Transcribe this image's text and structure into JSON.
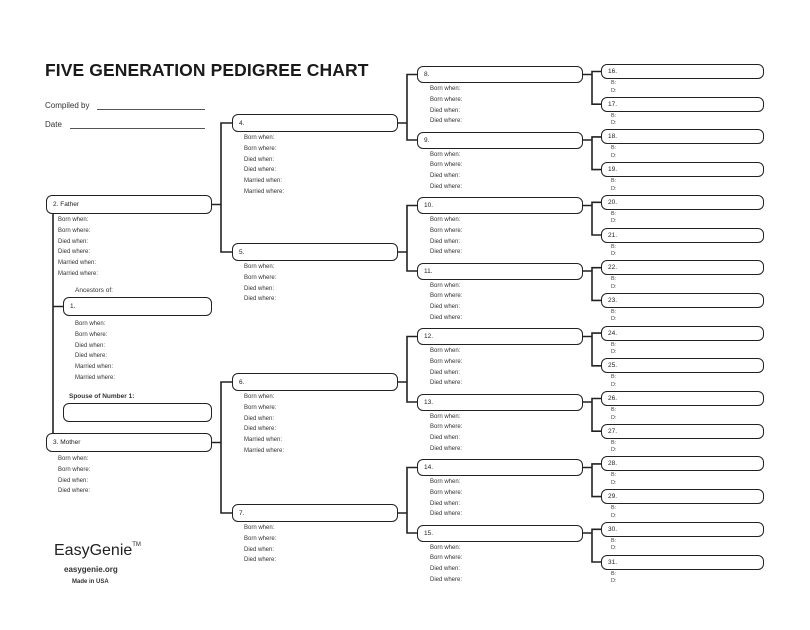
{
  "title": "FIVE GENERATION PEDIGREE CHART",
  "compiled_by_label": "Compiled by",
  "date_label": "Date",
  "ancestors_of_label": "Ancestors of:",
  "spouse_label": "Spouse of Number 1:",
  "fields": {
    "full": [
      "Born when:",
      "Born where:",
      "Died when:",
      "Died where:",
      "Married when:",
      "Married where:"
    ],
    "short": [
      "Born when:",
      "Born where:",
      "Died when:",
      "Died where:"
    ],
    "gen5": [
      "B:",
      "D:"
    ]
  },
  "persons": {
    "1": "1.",
    "2": "2. Father",
    "3": "3. Mother",
    "4": "4.",
    "5": "5.",
    "6": "6.",
    "7": "7.",
    "8": "8.",
    "9": "9.",
    "10": "10.",
    "11": "11.",
    "12": "12.",
    "13": "13.",
    "14": "14.",
    "15": "15.",
    "16": "16.",
    "17": "17.",
    "18": "18.",
    "19": "19.",
    "20": "20.",
    "21": "21.",
    "22": "22.",
    "23": "23.",
    "24": "24.",
    "25": "25.",
    "26": "26.",
    "27": "27.",
    "28": "28.",
    "29": "29.",
    "30": "30.",
    "31": "31."
  },
  "footer": {
    "brand": "EasyGenie",
    "trademark": "TM",
    "website": "easygenie.org",
    "made_in": "Made in USA"
  }
}
